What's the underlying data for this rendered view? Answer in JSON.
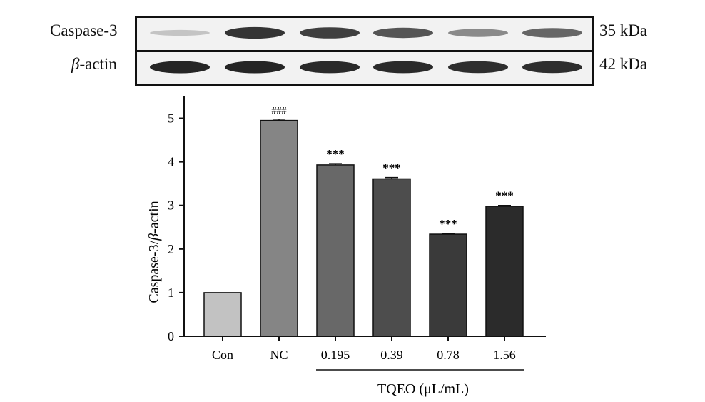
{
  "blot": {
    "rows": [
      {
        "label_prefix": "",
        "label_main": "Caspase-3",
        "kda": "35 kDa",
        "band_intensity": [
          0.18,
          0.85,
          0.8,
          0.7,
          0.45,
          0.62
        ]
      },
      {
        "label_prefix": "β",
        "label_main": "-actin",
        "kda": "42 kDa",
        "band_intensity": [
          0.92,
          0.92,
          0.9,
          0.9,
          0.88,
          0.88
        ]
      }
    ]
  },
  "chart_data": {
    "type": "bar",
    "categories": [
      "Con",
      "NC",
      "0.195",
      "0.39",
      "0.78",
      "1.56"
    ],
    "values": [
      1.0,
      4.95,
      3.93,
      3.61,
      2.34,
      2.98
    ],
    "errors": [
      0.0,
      0.03,
      0.03,
      0.03,
      0.02,
      0.02
    ],
    "significance": [
      "",
      "###",
      "***",
      "***",
      "***",
      "***"
    ],
    "bar_colors": [
      "#c2c2c2",
      "#858585",
      "#686868",
      "#4d4d4d",
      "#3a3a3a",
      "#2b2b2b"
    ],
    "ylabel_prefix": "Caspase-3/",
    "ylabel_greek": "β",
    "ylabel_suffix": "-actin",
    "yticks": [
      0,
      1,
      2,
      3,
      4,
      5
    ],
    "ylim": [
      0,
      5.5
    ],
    "group_label": "TQEO (μL/mL)",
    "group_range": [
      "0.195",
      "1.56"
    ]
  }
}
